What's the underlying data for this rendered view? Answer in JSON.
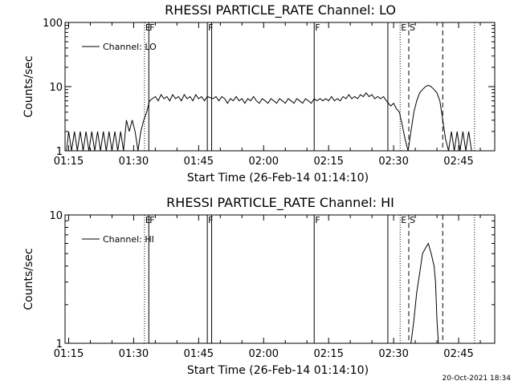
{
  "footer": {
    "timestamp": "20-Oct-2021 18:34"
  },
  "chart_data": [
    {
      "type": "line",
      "title": "RHESSI PARTICLE_RATE Channel: LO",
      "xlabel": "Start Time (26-Feb-14 01:14:10)",
      "ylabel": "Counts/sec",
      "yscale": "log",
      "xlim": [
        "01:14:10",
        "02:53:20"
      ],
      "ylim": [
        1,
        100
      ],
      "grid": false,
      "legend": {
        "placement": "top-left",
        "label": "Channel: LO"
      },
      "x_ticks": [
        "01:15",
        "01:30",
        "01:45",
        "02:00",
        "02:15",
        "02:30",
        "02:45"
      ],
      "y_ticks": [
        "1",
        "10",
        "100"
      ],
      "markers": [
        {
          "time": "01:32:30",
          "style": "dotted",
          "label": "E"
        },
        {
          "time": "01:33:30",
          "style": "solid",
          "label": "F"
        },
        {
          "time": "01:47:00",
          "style": "solid",
          "label": "F"
        },
        {
          "time": "01:48:00",
          "style": "solid",
          "label": ""
        },
        {
          "time": "02:11:40",
          "style": "solid",
          "label": "F"
        },
        {
          "time": "02:28:40",
          "style": "solid",
          "label": ""
        },
        {
          "time": "02:31:30",
          "style": "dotted",
          "label": "E"
        },
        {
          "time": "02:33:30",
          "style": "dashed",
          "label": "S"
        },
        {
          "time": "02:41:20",
          "style": "dashed",
          "label": ""
        },
        {
          "time": "02:48:40",
          "style": "dotted",
          "label": ""
        }
      ],
      "series": [
        {
          "values": [
            [
              "01:14:30",
              1
            ],
            [
              "01:15:00",
              2
            ],
            [
              "01:15:40",
              1
            ],
            [
              "01:16:20",
              2
            ],
            [
              "01:17:00",
              1
            ],
            [
              "01:17:40",
              2
            ],
            [
              "01:18:20",
              1
            ],
            [
              "01:19:00",
              2
            ],
            [
              "01:19:40",
              1
            ],
            [
              "01:20:20",
              2
            ],
            [
              "01:21:00",
              1
            ],
            [
              "01:21:40",
              2
            ],
            [
              "01:22:20",
              1
            ],
            [
              "01:23:00",
              2
            ],
            [
              "01:23:40",
              1
            ],
            [
              "01:24:20",
              2
            ],
            [
              "01:25:00",
              1
            ],
            [
              "01:25:40",
              2
            ],
            [
              "01:26:20",
              1
            ],
            [
              "01:27:00",
              2
            ],
            [
              "01:27:40",
              1
            ],
            [
              "01:28:20",
              3
            ],
            [
              "01:29:00",
              2
            ],
            [
              "01:29:40",
              3
            ],
            [
              "01:30:20",
              2
            ],
            [
              "01:31:00",
              1
            ],
            [
              "01:31:40",
              2
            ],
            [
              "01:32:20",
              3
            ],
            [
              "01:33:00",
              4
            ],
            [
              "01:33:40",
              6
            ],
            [
              "01:34:20",
              6.5
            ],
            [
              "01:35:00",
              7
            ],
            [
              "01:35:40",
              6
            ],
            [
              "01:36:20",
              7.5
            ],
            [
              "01:37:00",
              6.5
            ],
            [
              "01:37:40",
              7
            ],
            [
              "01:38:20",
              6
            ],
            [
              "01:39:00",
              7.5
            ],
            [
              "01:39:40",
              6.5
            ],
            [
              "01:40:20",
              7
            ],
            [
              "01:41:00",
              6
            ],
            [
              "01:41:40",
              7.5
            ],
            [
              "01:42:20",
              6.5
            ],
            [
              "01:43:00",
              7
            ],
            [
              "01:43:40",
              6
            ],
            [
              "01:44:20",
              7.5
            ],
            [
              "01:45:00",
              6.5
            ],
            [
              "01:45:40",
              7
            ],
            [
              "01:46:20",
              6
            ],
            [
              "01:47:00",
              7
            ],
            [
              "01:48:20",
              6.5
            ],
            [
              "01:49:00",
              7
            ],
            [
              "01:49:40",
              6
            ],
            [
              "01:50:20",
              7
            ],
            [
              "01:51:00",
              6.5
            ],
            [
              "01:51:40",
              5.5
            ],
            [
              "01:52:20",
              6.5
            ],
            [
              "01:53:00",
              6
            ],
            [
              "01:53:40",
              7
            ],
            [
              "01:54:20",
              6
            ],
            [
              "01:55:00",
              6.5
            ],
            [
              "01:55:40",
              5.5
            ],
            [
              "01:56:20",
              6.5
            ],
            [
              "01:57:00",
              6
            ],
            [
              "01:57:40",
              7
            ],
            [
              "01:58:20",
              6
            ],
            [
              "01:59:00",
              5.5
            ],
            [
              "01:59:40",
              6.5
            ],
            [
              "02:00:20",
              6
            ],
            [
              "02:01:00",
              5.5
            ],
            [
              "02:01:40",
              6.5
            ],
            [
              "02:02:20",
              6
            ],
            [
              "02:03:00",
              5.5
            ],
            [
              "02:03:40",
              6.5
            ],
            [
              "02:04:20",
              6
            ],
            [
              "02:05:00",
              5.5
            ],
            [
              "02:05:40",
              6.5
            ],
            [
              "02:06:20",
              6
            ],
            [
              "02:07:00",
              5.5
            ],
            [
              "02:07:40",
              6.5
            ],
            [
              "02:08:20",
              6
            ],
            [
              "02:09:00",
              5.5
            ],
            [
              "02:09:40",
              6.5
            ],
            [
              "02:10:20",
              6
            ],
            [
              "02:11:00",
              5.5
            ],
            [
              "02:11:40",
              6.5
            ],
            [
              "02:12:20",
              6
            ],
            [
              "02:13:00",
              6.5
            ],
            [
              "02:13:40",
              6
            ],
            [
              "02:14:20",
              6.5
            ],
            [
              "02:15:00",
              6
            ],
            [
              "02:15:40",
              7
            ],
            [
              "02:16:20",
              6
            ],
            [
              "02:17:00",
              6.5
            ],
            [
              "02:17:40",
              6
            ],
            [
              "02:18:20",
              7
            ],
            [
              "02:19:00",
              6.5
            ],
            [
              "02:19:40",
              7.5
            ],
            [
              "02:20:20",
              6.5
            ],
            [
              "02:21:00",
              7
            ],
            [
              "02:21:40",
              6.5
            ],
            [
              "02:22:20",
              7.5
            ],
            [
              "02:23:00",
              7
            ],
            [
              "02:23:40",
              8
            ],
            [
              "02:24:20",
              7
            ],
            [
              "02:25:00",
              7.5
            ],
            [
              "02:25:40",
              6.5
            ],
            [
              "02:26:20",
              7
            ],
            [
              "02:27:00",
              6.5
            ],
            [
              "02:27:40",
              7
            ],
            [
              "02:28:20",
              6
            ],
            [
              "02:29:20",
              5
            ],
            [
              "02:30:00",
              5.5
            ],
            [
              "02:30:40",
              4.5
            ],
            [
              "02:31:20",
              4
            ],
            [
              "02:32:00",
              2.5
            ],
            [
              "02:32:40",
              1.5
            ],
            [
              "02:33:20",
              1
            ],
            [
              "02:34:00",
              2
            ],
            [
              "02:34:40",
              4
            ],
            [
              "02:35:20",
              6
            ],
            [
              "02:36:00",
              8
            ],
            [
              "02:36:40",
              9
            ],
            [
              "02:37:20",
              10
            ],
            [
              "02:38:00",
              10.5
            ],
            [
              "02:38:40",
              10
            ],
            [
              "02:39:20",
              9
            ],
            [
              "02:40:00",
              8
            ],
            [
              "02:40:40",
              6
            ],
            [
              "02:41:20",
              3
            ],
            [
              "02:42:00",
              1.5
            ],
            [
              "02:42:40",
              1
            ],
            [
              "02:43:20",
              2
            ],
            [
              "02:44:00",
              1
            ],
            [
              "02:44:40",
              2
            ],
            [
              "02:45:20",
              1
            ],
            [
              "02:46:00",
              2
            ],
            [
              "02:46:40",
              1
            ],
            [
              "02:47:20",
              2
            ],
            [
              "02:48:00",
              1
            ]
          ]
        }
      ]
    },
    {
      "type": "line",
      "title": "RHESSI PARTICLE_RATE Channel: HI",
      "xlabel": "Start Time (26-Feb-14 01:14:10)",
      "ylabel": "Counts/sec",
      "yscale": "log",
      "xlim": [
        "01:14:10",
        "02:53:20"
      ],
      "ylim": [
        1,
        10
      ],
      "grid": false,
      "legend": {
        "placement": "top-left",
        "label": "Channel: HI"
      },
      "x_ticks": [
        "01:15",
        "01:30",
        "01:45",
        "02:00",
        "02:15",
        "02:30",
        "02:45"
      ],
      "y_ticks": [
        "1",
        "10"
      ],
      "markers": [
        {
          "time": "01:32:30",
          "style": "dotted",
          "label": "E"
        },
        {
          "time": "01:33:30",
          "style": "solid",
          "label": "F"
        },
        {
          "time": "01:47:00",
          "style": "solid",
          "label": "F"
        },
        {
          "time": "01:48:00",
          "style": "solid",
          "label": ""
        },
        {
          "time": "02:11:40",
          "style": "solid",
          "label": "F"
        },
        {
          "time": "02:28:40",
          "style": "solid",
          "label": ""
        },
        {
          "time": "02:31:30",
          "style": "dotted",
          "label": "E"
        },
        {
          "time": "02:33:30",
          "style": "dashed",
          "label": "S"
        },
        {
          "time": "02:41:20",
          "style": "dashed",
          "label": ""
        },
        {
          "time": "02:48:40",
          "style": "dotted",
          "label": ""
        }
      ],
      "series": [
        {
          "values": [
            [
              "02:34:00",
              1
            ],
            [
              "02:34:40",
              1.5
            ],
            [
              "02:35:20",
              2.5
            ],
            [
              "02:36:00",
              3.5
            ],
            [
              "02:36:40",
              5
            ],
            [
              "02:37:20",
              5.5
            ],
            [
              "02:38:00",
              6
            ],
            [
              "02:38:40",
              5
            ],
            [
              "02:39:20",
              4
            ],
            [
              "02:39:40",
              3
            ],
            [
              "02:40:00",
              1.5
            ],
            [
              "02:40:20",
              1
            ],
            [
              "02:40:40",
              1
            ]
          ]
        }
      ]
    }
  ]
}
